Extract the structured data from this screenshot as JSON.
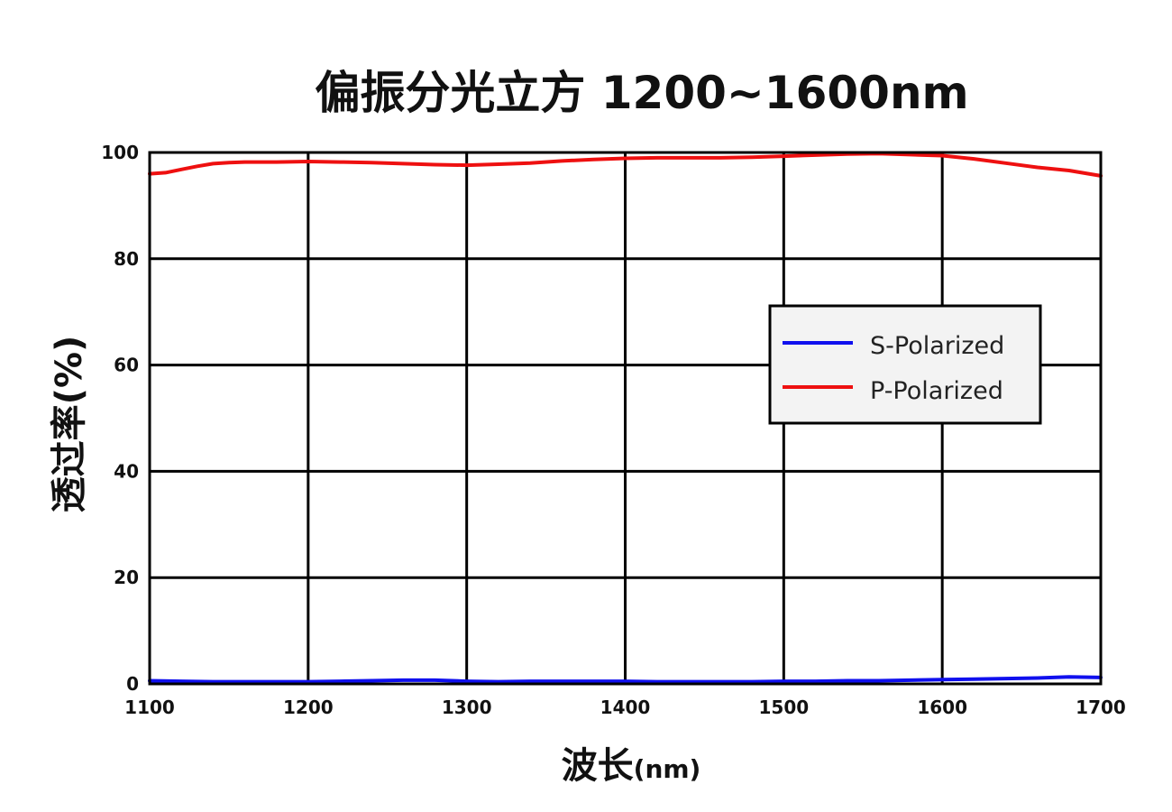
{
  "chart_data": {
    "type": "line",
    "title": "偏振分光立方 1200~1600nm",
    "xlabel_main": "波长",
    "xlabel_unit": "(nm)",
    "ylabel": "透过率(%)",
    "xlim": [
      1100,
      1700
    ],
    "ylim": [
      0,
      100
    ],
    "xticks": [
      1100,
      1200,
      1300,
      1400,
      1500,
      1600,
      1700
    ],
    "yticks": [
      0,
      20,
      40,
      60,
      80,
      100
    ],
    "grid": true,
    "legend_position": "right-middle",
    "series": [
      {
        "name": "S-Polarized",
        "color": "#1010ee",
        "x": [
          1100,
          1120,
          1140,
          1160,
          1180,
          1200,
          1220,
          1240,
          1260,
          1280,
          1300,
          1320,
          1340,
          1360,
          1380,
          1400,
          1420,
          1440,
          1460,
          1480,
          1500,
          1520,
          1540,
          1560,
          1580,
          1600,
          1620,
          1640,
          1660,
          1680,
          1700
        ],
        "y": [
          0.6,
          0.5,
          0.4,
          0.4,
          0.4,
          0.4,
          0.5,
          0.6,
          0.7,
          0.7,
          0.5,
          0.4,
          0.5,
          0.5,
          0.5,
          0.5,
          0.4,
          0.4,
          0.4,
          0.4,
          0.5,
          0.5,
          0.6,
          0.6,
          0.7,
          0.8,
          0.9,
          1.0,
          1.1,
          1.3,
          1.2
        ]
      },
      {
        "name": "P-Polarized",
        "color": "#ee1010",
        "x": [
          1100,
          1110,
          1120,
          1130,
          1140,
          1150,
          1160,
          1180,
          1200,
          1220,
          1240,
          1260,
          1280,
          1300,
          1320,
          1340,
          1360,
          1380,
          1400,
          1420,
          1440,
          1460,
          1480,
          1500,
          1520,
          1540,
          1560,
          1580,
          1600,
          1620,
          1640,
          1660,
          1680,
          1700
        ],
        "y": [
          96.0,
          96.2,
          96.8,
          97.4,
          97.9,
          98.1,
          98.2,
          98.2,
          98.3,
          98.2,
          98.1,
          97.9,
          97.7,
          97.6,
          97.8,
          98.0,
          98.4,
          98.7,
          98.9,
          99.0,
          99.0,
          99.0,
          99.1,
          99.3,
          99.5,
          99.7,
          99.8,
          99.6,
          99.4,
          98.8,
          98.0,
          97.2,
          96.6,
          95.6
        ]
      }
    ]
  }
}
